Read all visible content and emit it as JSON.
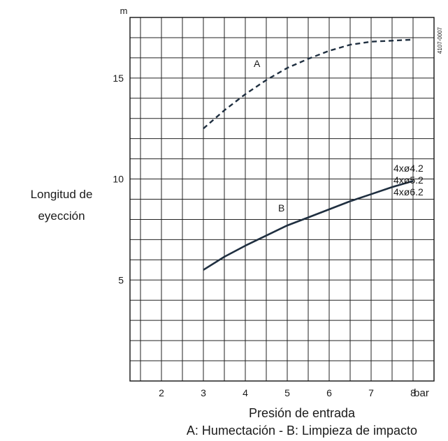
{
  "chart_data": {
    "type": "line",
    "y_unit_label": "m",
    "x_unit_label": "bar",
    "ylabel_lines": [
      "Longitud de",
      "eyección"
    ],
    "xlabel": "Presión de entrada",
    "caption": "A: Humectación - B: Limpieza de impacto",
    "figure_code": "4107-0007",
    "xlim": [
      1.25,
      8.5
    ],
    "ylim": [
      0,
      18
    ],
    "x_ticks": [
      2,
      3,
      4,
      5,
      6,
      7,
      8
    ],
    "y_ticks": [
      5,
      10,
      15
    ],
    "grid": true,
    "series": [
      {
        "name": "A",
        "style": "dashed",
        "color": "#1f2f40",
        "x": [
          3,
          3.5,
          4,
          4.5,
          5,
          5.5,
          6,
          6.5,
          7,
          7.5,
          8
        ],
        "y": [
          12.5,
          13.4,
          14.2,
          14.9,
          15.5,
          15.95,
          16.35,
          16.65,
          16.8,
          16.85,
          16.9
        ]
      },
      {
        "name": "B",
        "style": "solid",
        "color": "#1f2f40",
        "x": [
          3,
          3.5,
          4,
          4.5,
          5,
          5.5,
          6,
          6.5,
          7,
          7.5,
          8
        ],
        "y": [
          5.5,
          6.15,
          6.7,
          7.2,
          7.7,
          8.1,
          8.5,
          8.9,
          9.25,
          9.6,
          9.9
        ]
      }
    ],
    "annotations": [
      {
        "text": "A",
        "series": "A",
        "x": 4.65,
        "y": 15.7
      },
      {
        "text": "B",
        "series": "B",
        "x": 5.25,
        "y": 8.55
      }
    ],
    "series_b_end_labels": [
      "4xø4.2",
      "4xø5.2",
      "4xø6.2"
    ]
  }
}
